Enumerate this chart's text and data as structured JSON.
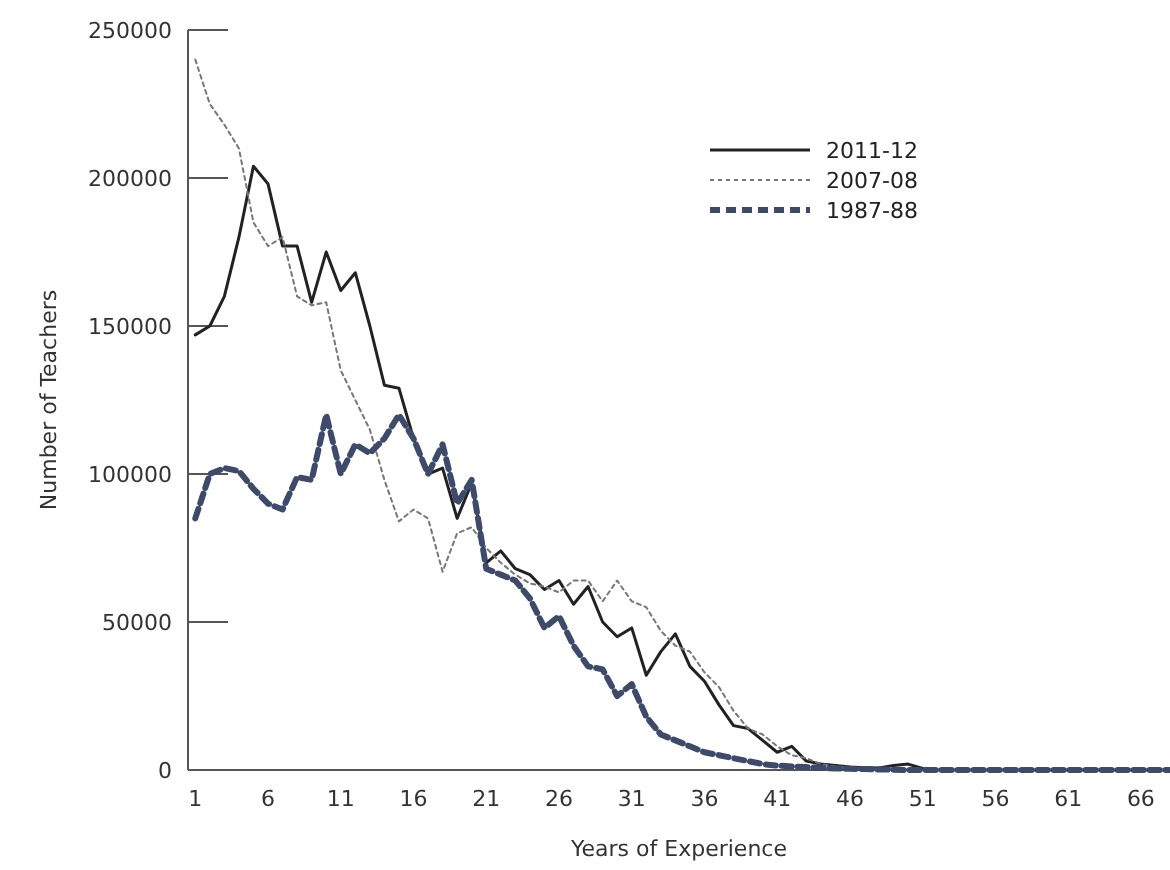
{
  "chart_data": {
    "type": "line",
    "xlabel": "Years of Experience",
    "ylabel": "Number of Teachers",
    "x": [
      1,
      2,
      3,
      4,
      5,
      6,
      7,
      8,
      9,
      10,
      11,
      12,
      13,
      14,
      15,
      16,
      17,
      18,
      19,
      20,
      21,
      22,
      23,
      24,
      25,
      26,
      27,
      28,
      29,
      30,
      31,
      32,
      33,
      34,
      35,
      36,
      37,
      38,
      39,
      40,
      41,
      42,
      43,
      44,
      45,
      46,
      47,
      48,
      49,
      50,
      51,
      52,
      53,
      54,
      55,
      56,
      57,
      58,
      59,
      60,
      61,
      62,
      63,
      64,
      65,
      66,
      67,
      68
    ],
    "xlim": [
      0.5,
      68
    ],
    "xticks": [
      1,
      6,
      11,
      16,
      21,
      26,
      31,
      36,
      41,
      46,
      51,
      56,
      61,
      66
    ],
    "ylim": [
      0,
      250000
    ],
    "yticks": [
      0,
      50000,
      100000,
      150000,
      200000,
      250000
    ],
    "grid": false,
    "legend": "top right",
    "marker": "none",
    "series": [
      {
        "name": "2011-12",
        "color": "#222222",
        "line_style": "solid",
        "values": [
          147000,
          150000,
          160000,
          180000,
          204000,
          198000,
          177000,
          177000,
          158000,
          175000,
          162000,
          168000,
          150000,
          130000,
          129000,
          112000,
          100000,
          102000,
          85000,
          97000,
          70000,
          74000,
          68000,
          66000,
          61000,
          64000,
          56000,
          62000,
          50000,
          45000,
          48000,
          32000,
          40000,
          46000,
          35000,
          30000,
          22000,
          15000,
          14000,
          10000,
          6000,
          8000,
          3000,
          2000,
          1500,
          1000,
          800,
          700,
          1500,
          2000,
          500,
          0,
          0,
          0,
          0,
          0,
          0,
          0,
          0,
          0,
          0,
          0,
          0,
          0,
          0,
          0,
          0,
          0
        ]
      },
      {
        "name": "2007-08",
        "color": "#777777",
        "line_style": "dotted",
        "values": [
          240000,
          225000,
          218000,
          210000,
          185000,
          177000,
          180000,
          160000,
          157000,
          158000,
          135000,
          125000,
          115000,
          98000,
          84000,
          88000,
          85000,
          67000,
          80000,
          82000,
          75000,
          70000,
          66000,
          63000,
          62000,
          60000,
          64000,
          64000,
          57000,
          64000,
          57000,
          55000,
          47000,
          42000,
          40000,
          33000,
          28000,
          20000,
          14000,
          12000,
          8000,
          5000,
          4000,
          2000,
          1200,
          800,
          500,
          400,
          300,
          200,
          0,
          0,
          0,
          0,
          0,
          0,
          0,
          0,
          0,
          0,
          0,
          0,
          0,
          0,
          0,
          0,
          0,
          0
        ]
      },
      {
        "name": "1987-88",
        "color": "#3d4a6b",
        "line_style": "dashed",
        "values": [
          85000,
          100000,
          102000,
          101000,
          95000,
          90000,
          88000,
          99000,
          98000,
          120000,
          100000,
          110000,
          107000,
          112000,
          120000,
          112000,
          100000,
          110000,
          90000,
          98000,
          68000,
          66000,
          64000,
          58000,
          48000,
          52000,
          42000,
          35000,
          34000,
          25000,
          29000,
          18000,
          12000,
          10000,
          8000,
          6000,
          5000,
          4000,
          3000,
          2000,
          1500,
          1200,
          1000,
          700,
          500,
          400,
          300,
          200,
          100,
          0,
          0,
          0,
          0,
          0,
          0,
          0,
          0,
          0,
          0,
          0,
          0,
          0,
          0,
          0,
          0,
          0,
          0,
          0
        ]
      }
    ]
  }
}
